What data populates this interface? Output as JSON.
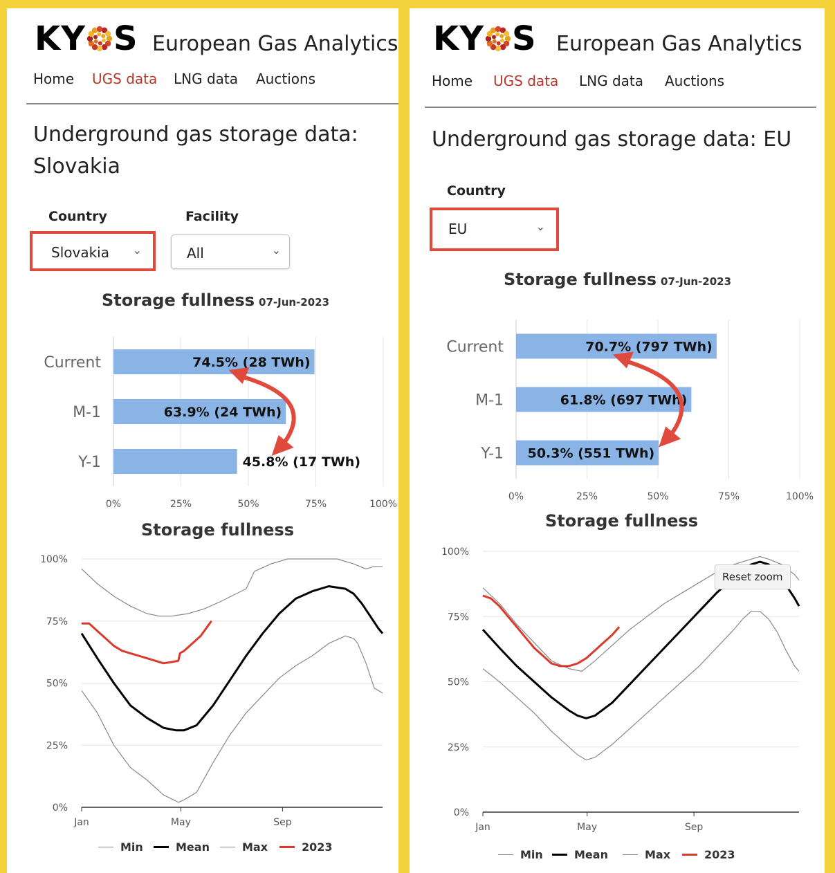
{
  "left": {
    "logo": "KY S",
    "brand": "European Gas Analytics",
    "nav": [
      "Home",
      "UGS data",
      "LNG data",
      "Auctions"
    ],
    "active_nav": "UGS data",
    "page_title_line1": "Underground gas storage data:",
    "page_title_line2": "Slovakia",
    "country_label": "Country",
    "country_value": "Slovakia",
    "facility_label": "Facility",
    "facility_value": "All",
    "bar_title": "Storage fullness",
    "bar_date": "07-Jun-2023",
    "line_title": "Storage fullness"
  },
  "right": {
    "logo": "KY S",
    "brand": "European Gas Analytics",
    "nav": [
      "Home",
      "UGS data",
      "LNG data",
      "Auctions"
    ],
    "active_nav": "UGS data",
    "page_title": "Underground gas storage data: EU",
    "country_label": "Country",
    "country_value": "EU",
    "bar_title": "Storage fullness",
    "bar_date": "07-Jun-2023",
    "line_title": "Storage fullness",
    "reset_zoom": "Reset zoom"
  },
  "colors": {
    "bar": "#8ab4e6",
    "accent_red": "#e04a3c",
    "nav_active": "#b8362a",
    "series_2023": "#d93a2b",
    "mean": "#000000",
    "minmax": "#888888"
  },
  "chart_data": [
    {
      "type": "bar",
      "orientation": "horizontal",
      "title": "Storage fullness 07-Jun-2023",
      "categories": [
        "Current",
        "M-1",
        "Y-1"
      ],
      "values": [
        74.5,
        63.9,
        45.8
      ],
      "labels": [
        "74.5% (28 TWh)",
        "63.9% (24 TWh)",
        "45.8% (17 TWh)"
      ],
      "xlim": [
        0,
        100
      ],
      "xticks": [
        "0%",
        "25%",
        "50%",
        "75%",
        "100%"
      ]
    },
    {
      "type": "bar",
      "orientation": "horizontal",
      "title": "Storage fullness 07-Jun-2023",
      "categories": [
        "Current",
        "M-1",
        "Y-1"
      ],
      "values": [
        70.7,
        61.8,
        50.3
      ],
      "labels": [
        "70.7% (797 TWh)",
        "61.8% (697 TWh)",
        "50.3% (551 TWh)"
      ],
      "xlim": [
        0,
        100
      ],
      "xticks": [
        "0%",
        "25%",
        "50%",
        "75%",
        "100%"
      ]
    },
    {
      "type": "line",
      "title": "Storage fullness",
      "ylim": [
        0,
        100
      ],
      "yticks": [
        "0%",
        "25%",
        "50%",
        "75%",
        "100%"
      ],
      "xticks": [
        "Jan",
        "May",
        "Sep"
      ],
      "x_day_of_year_range": [
        1,
        365
      ],
      "series": [
        {
          "name": "Min",
          "x": [
            1,
            20,
            40,
            60,
            80,
            100,
            112,
            118,
            125,
            140,
            160,
            180,
            200,
            220,
            240,
            260,
            280,
            300,
            320,
            330,
            335,
            345,
            355,
            365
          ],
          "y": [
            47,
            38,
            25,
            16,
            11,
            5,
            3,
            2,
            3,
            6,
            18,
            29,
            38,
            45,
            52,
            57,
            61,
            66,
            69,
            68,
            66,
            58,
            48,
            46
          ]
        },
        {
          "name": "Mean",
          "x": [
            1,
            20,
            40,
            60,
            80,
            100,
            115,
            125,
            140,
            160,
            180,
            200,
            220,
            240,
            260,
            280,
            300,
            320,
            330,
            340,
            350,
            360,
            365
          ],
          "y": [
            70,
            60,
            50,
            41,
            36,
            32,
            31,
            31,
            33,
            41,
            51,
            61,
            70,
            78,
            84,
            87,
            89,
            88,
            86,
            82,
            77,
            72,
            70
          ]
        },
        {
          "name": "Max",
          "x": [
            1,
            20,
            40,
            60,
            80,
            95,
            110,
            130,
            150,
            170,
            200,
            210,
            230,
            250,
            270,
            290,
            310,
            330,
            345,
            355,
            365
          ],
          "y": [
            96,
            90,
            85,
            81,
            78,
            77,
            77,
            78,
            80,
            83,
            88,
            95,
            98,
            100,
            100,
            100,
            100,
            98,
            96,
            97,
            97
          ]
        },
        {
          "name": "2023",
          "x": [
            1,
            10,
            20,
            30,
            40,
            50,
            60,
            70,
            80,
            90,
            100,
            110,
            118,
            120,
            125,
            135,
            145,
            158
          ],
          "y": [
            74,
            74,
            71,
            68,
            65,
            63,
            62,
            61,
            60,
            59,
            58,
            58.5,
            59,
            62,
            63,
            66,
            69,
            75
          ]
        }
      ]
    },
    {
      "type": "line",
      "title": "Storage fullness",
      "ylim": [
        0,
        100
      ],
      "yticks": [
        "0%",
        "25%",
        "50%",
        "75%",
        "100%"
      ],
      "xticks": [
        "Jan",
        "May",
        "Sep"
      ],
      "x_day_of_year_range": [
        1,
        365
      ],
      "series": [
        {
          "name": "Min",
          "x": [
            1,
            20,
            40,
            60,
            80,
            100,
            110,
            120,
            130,
            150,
            170,
            190,
            210,
            230,
            250,
            270,
            290,
            300,
            310,
            320,
            330,
            340,
            350,
            360,
            365
          ],
          "y": [
            55,
            50,
            44,
            38,
            31,
            25,
            22,
            20,
            21,
            26,
            32,
            38,
            44,
            50,
            56,
            63,
            70,
            74,
            77,
            77,
            74,
            69,
            62,
            56,
            54
          ]
        },
        {
          "name": "Mean",
          "x": [
            1,
            20,
            40,
            60,
            80,
            100,
            110,
            120,
            130,
            150,
            170,
            190,
            210,
            230,
            250,
            270,
            290,
            300,
            310,
            320,
            330,
            340,
            350,
            360,
            365
          ],
          "y": [
            70,
            63,
            56,
            50,
            44,
            39,
            37,
            36,
            37,
            42,
            49,
            56,
            63,
            70,
            77,
            84,
            90,
            93,
            95,
            96,
            95,
            92,
            87,
            82,
            79
          ]
        },
        {
          "name": "Max",
          "x": [
            1,
            20,
            40,
            60,
            80,
            100,
            115,
            130,
            150,
            170,
            190,
            210,
            230,
            250,
            270,
            290,
            310,
            320,
            330,
            345,
            360,
            365
          ],
          "y": [
            86,
            80,
            72,
            65,
            58,
            55,
            54,
            58,
            64,
            70,
            75,
            80,
            84,
            88,
            92,
            95,
            97,
            98,
            97,
            95,
            91,
            89
          ]
        },
        {
          "name": "2023",
          "x": [
            1,
            10,
            20,
            30,
            40,
            50,
            60,
            70,
            80,
            90,
            100,
            110,
            120,
            130,
            140,
            150,
            158
          ],
          "y": [
            83,
            82,
            79,
            75,
            71,
            67,
            63,
            60,
            57,
            56,
            56,
            57,
            59,
            62,
            65,
            68,
            71
          ]
        }
      ]
    }
  ],
  "legend": [
    "Min",
    "Mean",
    "Max",
    "2023"
  ]
}
